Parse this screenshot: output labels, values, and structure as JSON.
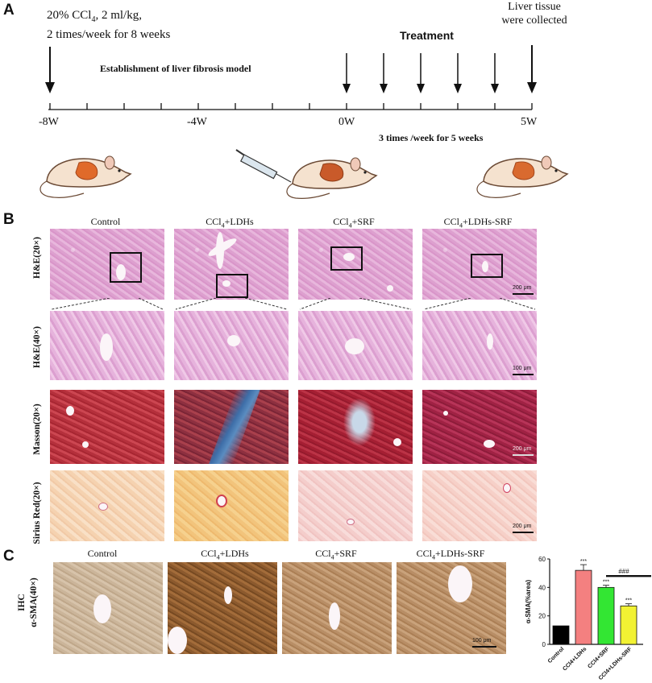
{
  "panelA": {
    "letter": "A",
    "dose_line1": "20% CCl",
    "dose_sub": "4",
    "dose_line1_rest": ", 2 ml/kg,",
    "dose_line2": "2 times/week for 8 weeks",
    "collected_line1": "Liver tissue",
    "collected_line2": "were collected",
    "treatment": "Treatment",
    "model": "Establishment of liver fibrosis model",
    "ticks": [
      "-8W",
      "-4W",
      "0W",
      "5W"
    ],
    "schedule": "3 times /week  for 5 weeks"
  },
  "panelB": {
    "letter": "B",
    "columns": [
      "Control",
      "CCl4+LDHs",
      "CCl4+SRF",
      "CCl4+LDHs-SRF"
    ],
    "rows": [
      "H&E(20×)",
      "H&E(40×)",
      "Masson(20×)",
      "Sirius Red(20×)"
    ],
    "scale_200": "200 μm",
    "scale_100": "100 μm"
  },
  "panelC": {
    "letter": "C",
    "columns": [
      "Control",
      "CCl4+LDHs",
      "CCl4+SRF",
      "CCl4+LDHs-SRF"
    ],
    "row_label_line1": "IHC",
    "row_label_line2": "α-SMA(40×)",
    "scale_100": "100 μm"
  },
  "chart_data": {
    "type": "bar",
    "categories": [
      "Control",
      "CCl4+LDHs",
      "CCl4+SRF",
      "CCl4+LDHs-SRF"
    ],
    "values": [
      13,
      52,
      40,
      27
    ],
    "errors": [
      0,
      4,
      1.5,
      1.5
    ],
    "colors": [
      "#000000",
      "#f48080",
      "#33e633",
      "#f2f233"
    ],
    "significance": [
      "",
      "***",
      "***",
      "***"
    ],
    "comparison_mark": "###",
    "ylabel": "α-SMA(%area)",
    "ylim": [
      0,
      60
    ],
    "yticks": [
      0,
      20,
      40,
      60
    ]
  }
}
